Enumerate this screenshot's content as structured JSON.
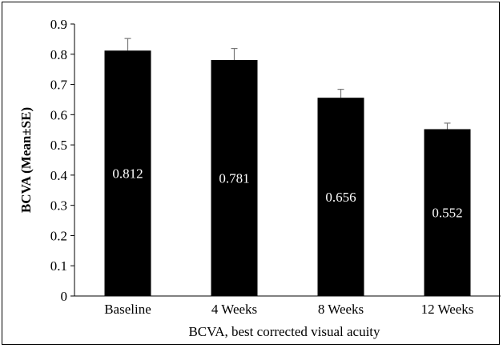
{
  "chart_data": {
    "type": "bar",
    "title": "",
    "xlabel": "BCVA, best corrected visual acuity",
    "ylabel": "BCVA (Mean±SE)",
    "ylim": [
      0,
      0.9
    ],
    "yticks": [
      "0",
      "0.1",
      "0.2",
      "0.3",
      "0.4",
      "0.5",
      "0.6",
      "0.7",
      "0.8",
      "0.9"
    ],
    "categories": [
      "Baseline",
      "4 Weeks",
      "8 Weeks",
      "12 Weeks"
    ],
    "values": [
      0.812,
      0.781,
      0.656,
      0.552
    ],
    "value_labels": [
      "0.812",
      "0.781",
      "0.656",
      "0.552"
    ],
    "se": [
      0.04,
      0.038,
      0.028,
      0.02
    ],
    "bar_color": "#000000",
    "label_color": "#ffffff",
    "grid": false,
    "legend": "none"
  }
}
